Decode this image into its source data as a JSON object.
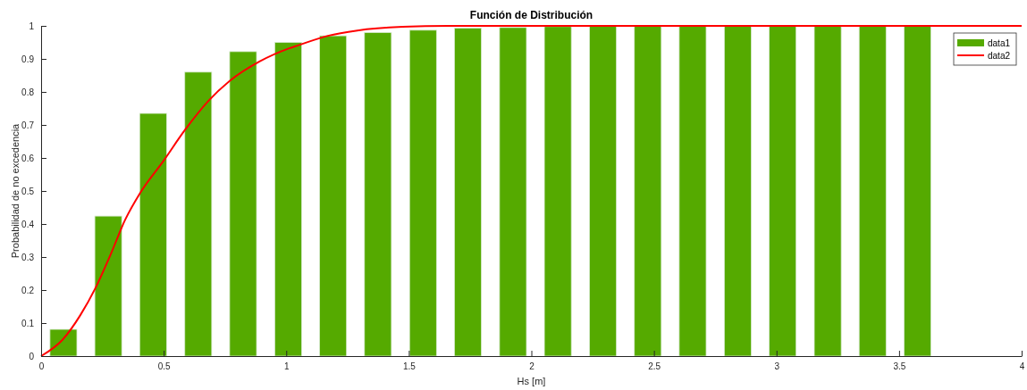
{
  "chart_data": {
    "type": "bar",
    "title": "Función de Distribución",
    "xlabel": "Hs [m]",
    "ylabel": "Probabilidad de no excedencia",
    "xlim": [
      0,
      4
    ],
    "xticks": [
      0,
      0.5,
      1,
      1.5,
      2,
      2.5,
      3,
      3.5,
      4
    ],
    "ylim": [
      0,
      1
    ],
    "yticks": [
      0,
      0.1,
      0.2,
      0.3,
      0.4,
      0.5,
      0.6,
      0.7,
      0.8,
      0.9,
      1
    ],
    "grid": false,
    "legend": "top right",
    "series": [
      {
        "name": "data1",
        "color": "#55aa00",
        "x": [
          0.091,
          0.274,
          0.457,
          0.641,
          0.824,
          1.008,
          1.191,
          1.374,
          1.558,
          1.741,
          1.925,
          2.108,
          2.292,
          2.475,
          2.658,
          2.842,
          3.025,
          3.209,
          3.392,
          3.575
        ],
        "values": [
          0.081,
          0.424,
          0.735,
          0.86,
          0.922,
          0.95,
          0.97,
          0.98,
          0.987,
          0.993,
          0.995,
          0.998,
          1,
          1,
          1,
          1,
          1,
          1,
          1,
          1
        ]
      },
      {
        "name": "data2",
        "type": "line",
        "color": "#ff0000",
        "line_style": "solid",
        "marker": "none",
        "x": [
          0,
          0.088,
          0.16,
          0.221,
          0.282,
          0.343,
          0.404,
          0.501,
          0.586,
          0.684,
          0.769,
          0.891,
          1.012,
          1.048,
          1.17,
          1.29,
          1.475,
          1.66,
          2,
          3,
          4
        ],
        "values": [
          0,
          0.05,
          0.124,
          0.205,
          0.305,
          0.413,
          0.494,
          0.593,
          0.684,
          0.774,
          0.833,
          0.892,
          0.932,
          0.941,
          0.97,
          0.986,
          0.997,
          1,
          1,
          1,
          1
        ]
      }
    ]
  }
}
